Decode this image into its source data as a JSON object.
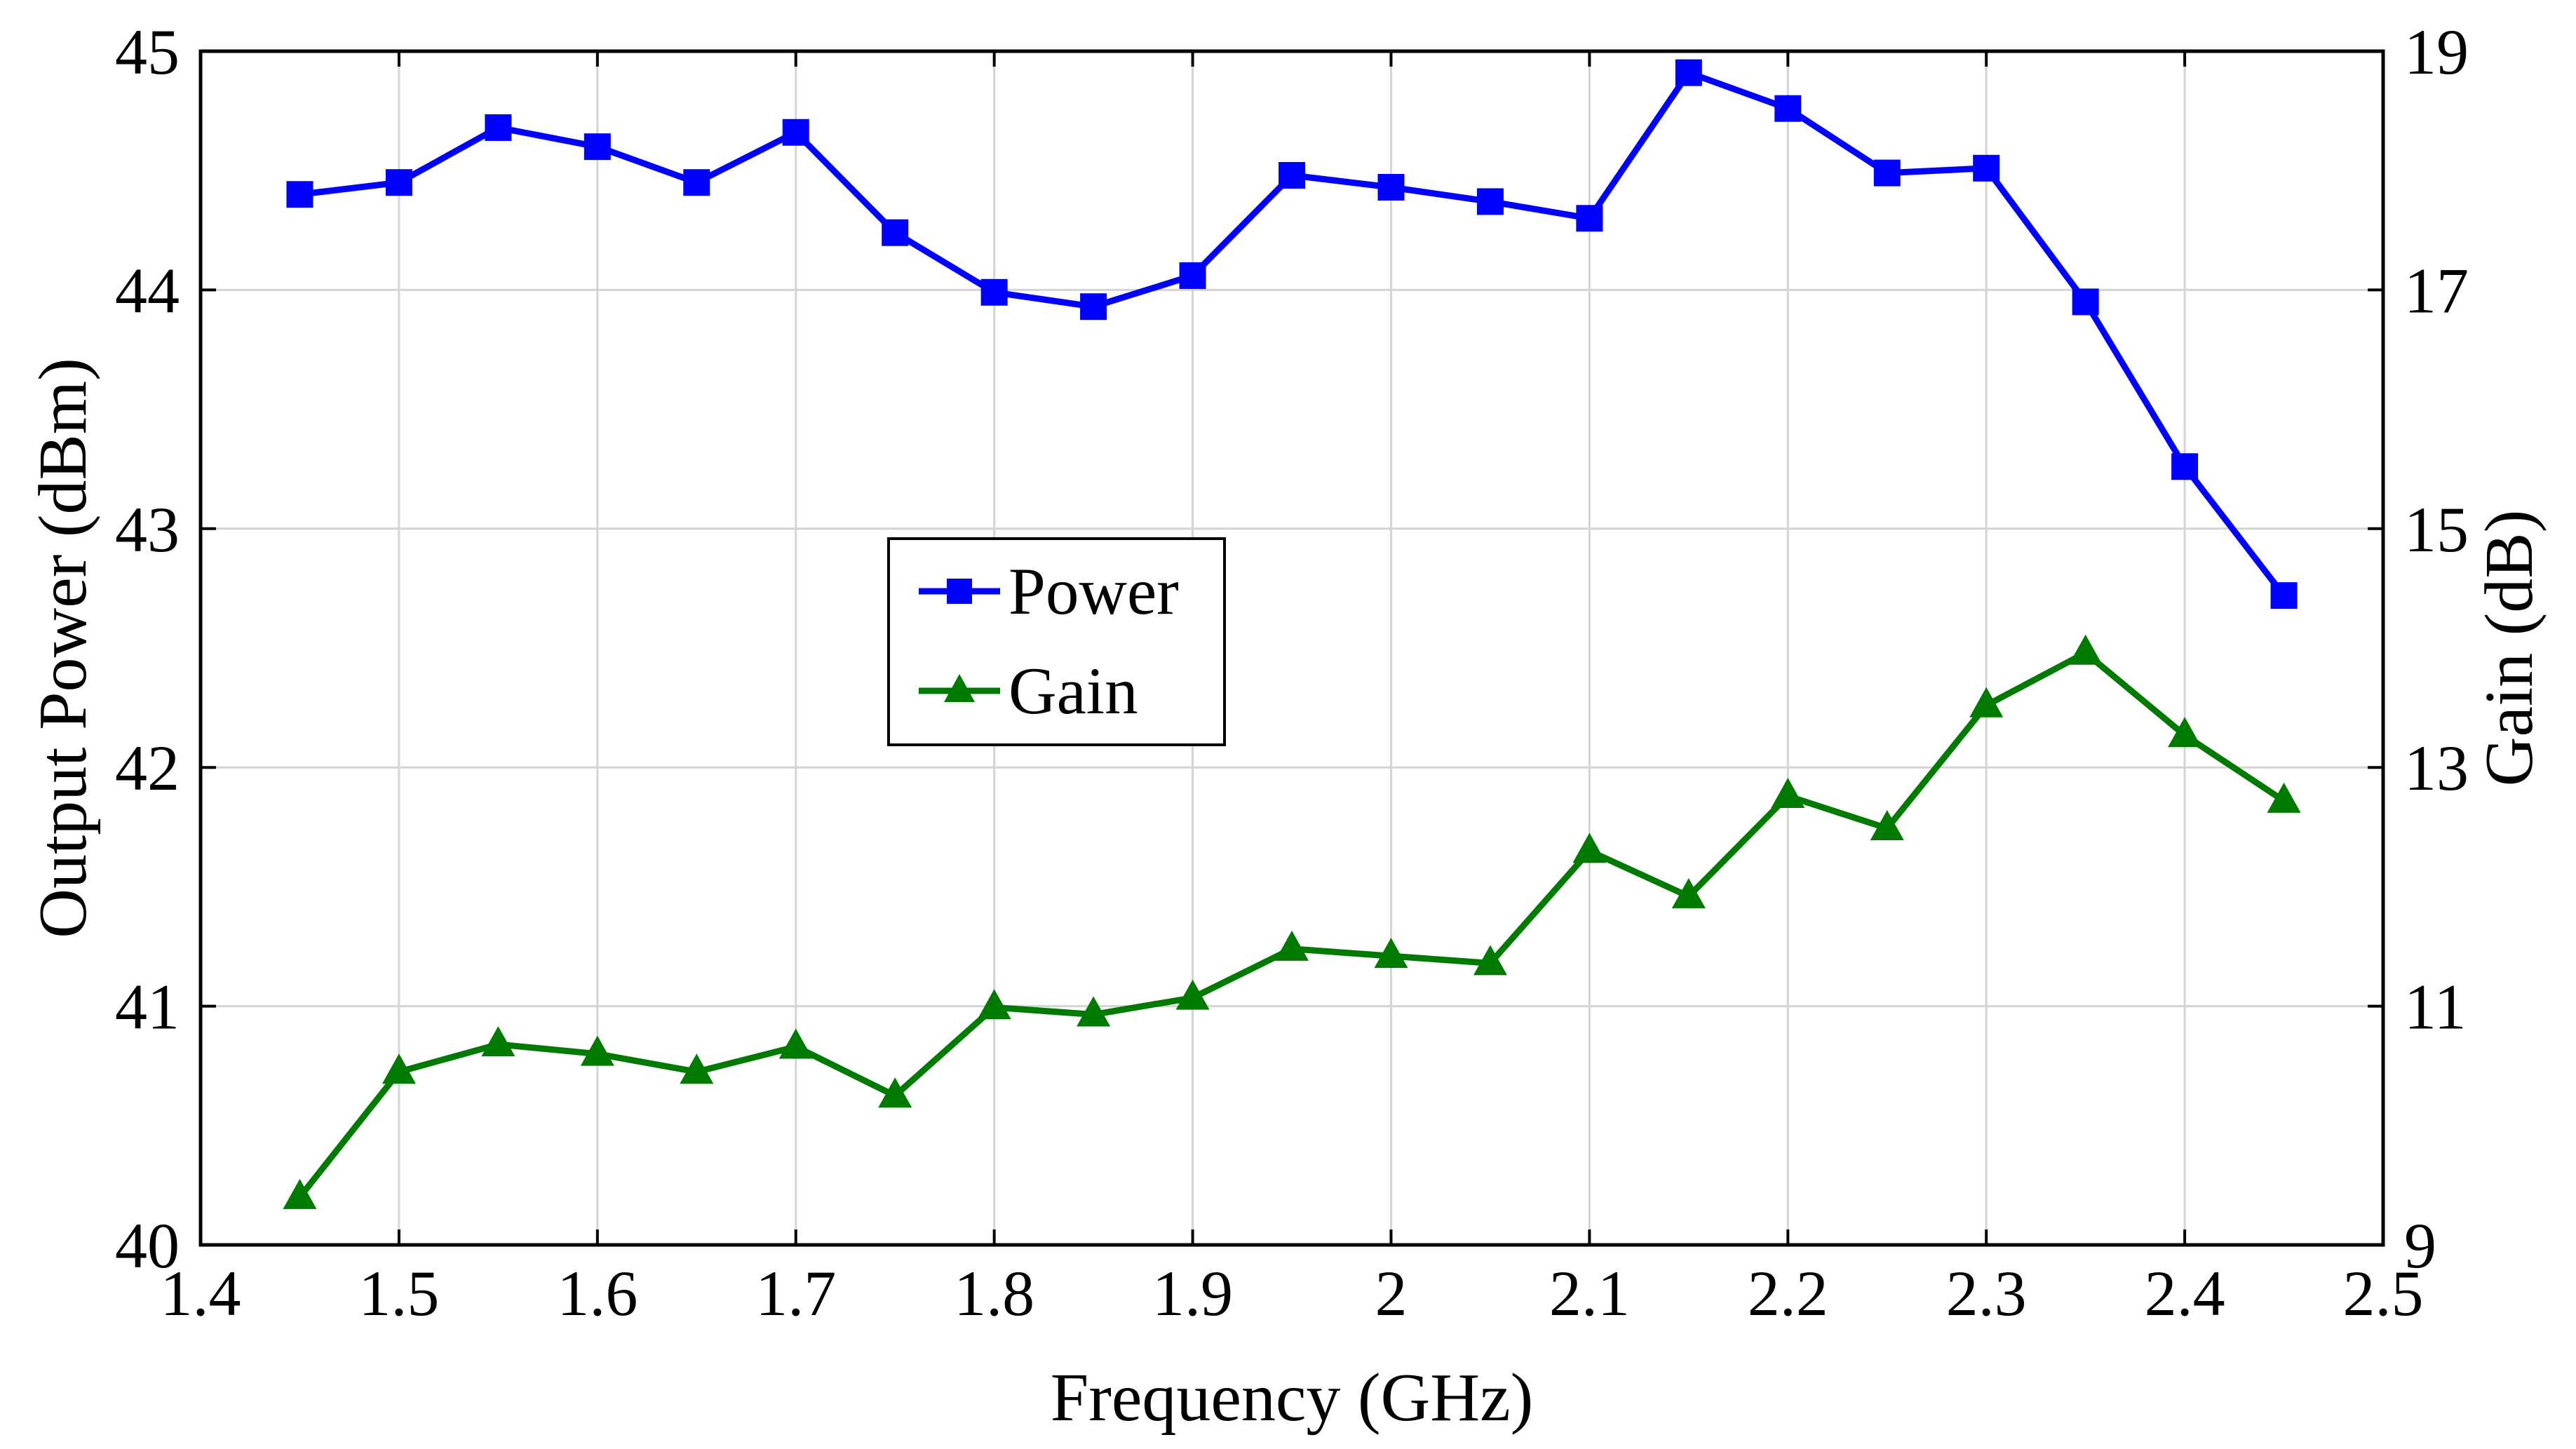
{
  "chart_data": {
    "type": "line",
    "title": "",
    "xlabel": "Frequency (GHz)",
    "ylabel_left": "Output Power (dBm)",
    "ylabel_right": "Gain (dB)",
    "xlim": [
      1.4,
      2.5
    ],
    "ylim_left": [
      40,
      45
    ],
    "ylim_right": [
      9,
      19
    ],
    "grid": true,
    "legend_position": "center-left",
    "x_ticks": [
      "1.4",
      "1.5",
      "1.6",
      "1.7",
      "1.8",
      "1.9",
      "2",
      "2.1",
      "2.2",
      "2.3",
      "2.4",
      "2.5"
    ],
    "y_ticks_left": [
      "40",
      "41",
      "42",
      "43",
      "44",
      "45"
    ],
    "y_ticks_right": [
      "9",
      "11",
      "13",
      "15",
      "17",
      "19"
    ],
    "x": [
      1.45,
      1.5,
      1.55,
      1.6,
      1.65,
      1.7,
      1.75,
      1.8,
      1.85,
      1.9,
      1.95,
      2.0,
      2.05,
      2.1,
      2.15,
      2.2,
      2.25,
      2.3,
      2.35,
      2.4,
      2.45
    ],
    "series": [
      {
        "name": "Power",
        "axis": "left",
        "color": "#0000ff",
        "marker": "square",
        "values": [
          44.4,
          44.45,
          44.68,
          44.6,
          44.45,
          44.66,
          44.24,
          43.99,
          43.93,
          44.06,
          44.48,
          44.43,
          44.37,
          44.3,
          44.91,
          44.76,
          44.49,
          44.51,
          43.95,
          43.26,
          42.72
        ]
      },
      {
        "name": "Gain",
        "axis": "right",
        "color": "#007a00",
        "marker": "triangle",
        "values": [
          9.4,
          10.45,
          10.68,
          10.6,
          10.45,
          10.66,
          10.25,
          10.99,
          10.93,
          11.07,
          11.48,
          11.42,
          11.36,
          12.3,
          11.92,
          12.76,
          12.49,
          13.52,
          13.96,
          13.27,
          12.72
        ]
      }
    ]
  }
}
